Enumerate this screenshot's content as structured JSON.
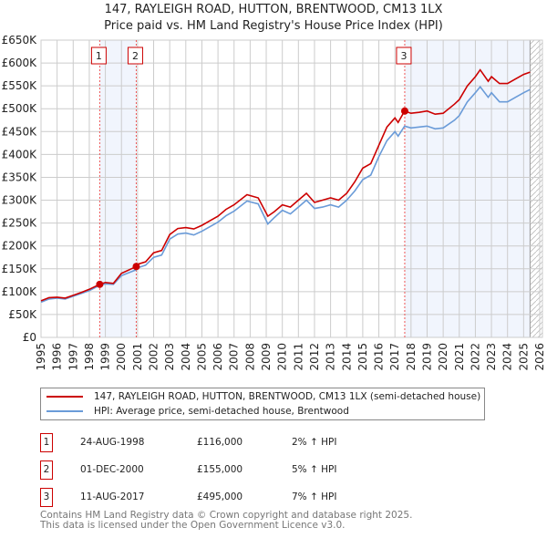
{
  "title_line1": "147, RAYLEIGH ROAD, HUTTON, BRENTWOOD, CM13 1LX",
  "title_line2": "Price paid vs. HM Land Registry's House Price Index (HPI)",
  "chart_data": {
    "type": "line",
    "ylim": [
      0,
      650000
    ],
    "xlim": [
      1995,
      2026
    ],
    "yticks": [
      0,
      50000,
      100000,
      150000,
      200000,
      250000,
      300000,
      350000,
      400000,
      450000,
      500000,
      550000,
      600000,
      650000
    ],
    "ytick_labels": [
      "£0",
      "£50K",
      "£100K",
      "£150K",
      "£200K",
      "£250K",
      "£300K",
      "£350K",
      "£400K",
      "£450K",
      "£500K",
      "£550K",
      "£600K",
      "£650K"
    ],
    "xticks": [
      1995,
      1996,
      1997,
      1998,
      1999,
      2000,
      2001,
      2002,
      2003,
      2004,
      2005,
      2006,
      2007,
      2008,
      2009,
      2010,
      2011,
      2012,
      2013,
      2014,
      2015,
      2016,
      2017,
      2018,
      2019,
      2020,
      2021,
      2022,
      2023,
      2024,
      2025,
      2026
    ],
    "grid": true,
    "series": [
      {
        "name": "147, RAYLEIGH ROAD, HUTTON, BRENTWOOD, CM13 1LX (semi-detached house)",
        "color": "#cc0000",
        "x": [
          1995,
          1995.5,
          1996,
          1996.5,
          1997,
          1997.5,
          1998,
          1998.65,
          1999,
          1999.5,
          2000,
          2000.92,
          2001,
          2001.5,
          2002,
          2002.5,
          2003,
          2003.5,
          2004,
          2004.5,
          2005,
          2005.5,
          2006,
          2006.5,
          2007,
          2007.8,
          2008.5,
          2009.1,
          2009.5,
          2010,
          2010.5,
          2011,
          2011.5,
          2012,
          2012.5,
          2013,
          2013.5,
          2014,
          2014.5,
          2015,
          2015.5,
          2016,
          2016.5,
          2017,
          2017.2,
          2017.6,
          2018,
          2018.5,
          2019,
          2019.5,
          2020,
          2020.7,
          2021,
          2021.5,
          2022,
          2022.3,
          2022.8,
          2023,
          2023.5,
          2024,
          2024.5,
          2025,
          2025.4
        ],
        "y": [
          80000,
          87000,
          88000,
          86000,
          92000,
          98000,
          105000,
          116000,
          120000,
          118000,
          140000,
          155000,
          160000,
          165000,
          185000,
          190000,
          225000,
          238000,
          240000,
          237000,
          245000,
          255000,
          265000,
          280000,
          290000,
          312000,
          305000,
          265000,
          275000,
          290000,
          285000,
          300000,
          315000,
          295000,
          300000,
          305000,
          300000,
          315000,
          340000,
          370000,
          380000,
          420000,
          460000,
          480000,
          470000,
          495000,
          490000,
          492000,
          495000,
          488000,
          490000,
          510000,
          520000,
          550000,
          570000,
          585000,
          560000,
          570000,
          555000,
          555000,
          565000,
          575000,
          580000
        ]
      },
      {
        "name": "HPI: Average price, semi-detached house, Brentwood",
        "color": "#6a9bd8",
        "x": [
          1995,
          1995.5,
          1996,
          1996.5,
          1997,
          1997.5,
          1998,
          1998.65,
          1999,
          1999.5,
          2000,
          2000.92,
          2001,
          2001.5,
          2002,
          2002.5,
          2003,
          2003.5,
          2004,
          2004.5,
          2005,
          2005.5,
          2006,
          2006.5,
          2007,
          2007.8,
          2008.5,
          2009.1,
          2009.5,
          2010,
          2010.5,
          2011,
          2011.5,
          2012,
          2012.5,
          2013,
          2013.5,
          2014,
          2014.5,
          2015,
          2015.5,
          2016,
          2016.5,
          2017,
          2017.2,
          2017.6,
          2018,
          2018.5,
          2019,
          2019.5,
          2020,
          2020.7,
          2021,
          2021.5,
          2022,
          2022.3,
          2022.8,
          2023,
          2023.5,
          2024,
          2024.5,
          2025,
          2025.4
        ],
        "y": [
          77000,
          84000,
          86000,
          84000,
          90000,
          96000,
          102000,
          114000,
          117000,
          116000,
          135000,
          148000,
          152000,
          158000,
          175000,
          180000,
          215000,
          226000,
          228000,
          224000,
          232000,
          242000,
          252000,
          266000,
          276000,
          298000,
          292000,
          248000,
          262000,
          278000,
          270000,
          285000,
          300000,
          282000,
          285000,
          290000,
          285000,
          300000,
          320000,
          345000,
          355000,
          395000,
          430000,
          450000,
          440000,
          462000,
          458000,
          460000,
          462000,
          456000,
          458000,
          475000,
          485000,
          515000,
          535000,
          548000,
          525000,
          535000,
          515000,
          515000,
          525000,
          535000,
          542000
        ]
      }
    ],
    "sales": [
      {
        "label": "1",
        "x": 1998.65,
        "y": 116000
      },
      {
        "label": "2",
        "x": 2000.92,
        "y": 155000
      },
      {
        "label": "3",
        "x": 2017.61,
        "y": 495000
      }
    ],
    "shaded_ranges": [
      [
        1998.65,
        2000.92
      ],
      [
        2017.61,
        2025.4
      ]
    ],
    "future_hatch_from": 2025.4
  },
  "legend": {
    "property": "147, RAYLEIGH ROAD, HUTTON, BRENTWOOD, CM13 1LX (semi-detached house)",
    "hpi": "HPI: Average price, semi-detached house, Brentwood"
  },
  "transactions": [
    {
      "num": "1",
      "date": "24-AUG-1998",
      "price": "£116,000",
      "hpi": "2% ↑ HPI"
    },
    {
      "num": "2",
      "date": "01-DEC-2000",
      "price": "£155,000",
      "hpi": "5% ↑ HPI"
    },
    {
      "num": "3",
      "date": "11-AUG-2017",
      "price": "£495,000",
      "hpi": "7% ↑ HPI"
    }
  ],
  "footer_line1": "Contains HM Land Registry data © Crown copyright and database right 2025.",
  "footer_line2": "This data is licensed under the Open Government Licence v3.0."
}
